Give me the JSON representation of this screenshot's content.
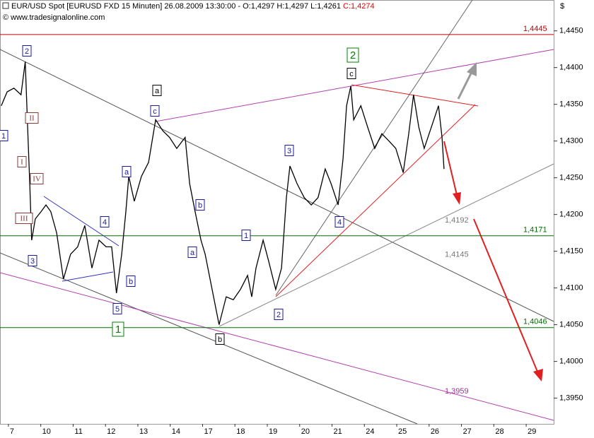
{
  "chart_data": {
    "type": "line",
    "title": "EUR/USD Spot [EURUSD FXD  15 Minuten] 26.08.2009 13:30:00 - O:1,4297 H:1,4297 L:1,4261 ",
    "close_label": "C:1,4274",
    "source": "© www.tradesignalonline.com",
    "y_unit": "$",
    "xlim": [
      -0.26,
      16.85
    ],
    "ylim": [
      1.3915,
      1.4492
    ],
    "xticks": [
      {
        "value": 0,
        "label": "7"
      },
      {
        "value": 1,
        "label": "10"
      },
      {
        "value": 2,
        "label": "11"
      },
      {
        "value": 3,
        "label": "12"
      },
      {
        "value": 4,
        "label": "13"
      },
      {
        "value": 5,
        "label": "14"
      },
      {
        "value": 6,
        "label": "17"
      },
      {
        "value": 7,
        "label": "18"
      },
      {
        "value": 8,
        "label": "19"
      },
      {
        "value": 9,
        "label": "20"
      },
      {
        "value": 10,
        "label": "21"
      },
      {
        "value": 11,
        "label": "24"
      },
      {
        "value": 12,
        "label": "25"
      },
      {
        "value": 13,
        "label": "26"
      },
      {
        "value": 14,
        "label": "27"
      },
      {
        "value": 15,
        "label": "28"
      },
      {
        "value": 16,
        "label": "29"
      }
    ],
    "yticks": [
      {
        "value": 1.445,
        "label": "1,4450"
      },
      {
        "value": 1.44,
        "label": "1,4400"
      },
      {
        "value": 1.435,
        "label": "1,4350"
      },
      {
        "value": 1.43,
        "label": "1,4300"
      },
      {
        "value": 1.425,
        "label": "1,4250"
      },
      {
        "value": 1.42,
        "label": "1,4200"
      },
      {
        "value": 1.415,
        "label": "1,4150"
      },
      {
        "value": 1.41,
        "label": "1,4100"
      },
      {
        "value": 1.405,
        "label": "1,4050"
      },
      {
        "value": 1.4,
        "label": "1,4000"
      },
      {
        "value": 1.395,
        "label": "1,3950"
      }
    ],
    "series": [
      {
        "name": "EUR/USD",
        "color": "#000000",
        "x": [
          -0.22,
          -0.04,
          0.17,
          0.39,
          0.52,
          0.61,
          0.66,
          0.72,
          0.83,
          1.01,
          1.16,
          1.31,
          1.49,
          1.7,
          1.92,
          2.14,
          2.36,
          2.58,
          2.8,
          3.02,
          3.19,
          3.34,
          3.5,
          3.63,
          3.72,
          3.89,
          4.11,
          4.33,
          4.55,
          4.77,
          4.98,
          5.2,
          5.46,
          5.6,
          5.77,
          5.95,
          6.08,
          6.25,
          6.51,
          6.73,
          6.95,
          7.17,
          7.39,
          7.52,
          7.65,
          7.87,
          8.04,
          8.26,
          8.44,
          8.59,
          8.7,
          8.92,
          9.14,
          9.36,
          9.57,
          9.79,
          9.97,
          10.19,
          10.34,
          10.45,
          10.58,
          10.67,
          10.89,
          11.1,
          11.32,
          11.54,
          11.76,
          11.97,
          12.2,
          12.37,
          12.52,
          12.68,
          12.85,
          13.07,
          13.29,
          13.4,
          13.46
        ],
        "values": [
          1.4348,
          1.4367,
          1.4372,
          1.4363,
          1.4408,
          1.43,
          1.4242,
          1.4165,
          1.4194,
          1.4204,
          1.4213,
          1.4204,
          1.4175,
          1.4112,
          1.4146,
          1.4156,
          1.4185,
          1.4127,
          1.4165,
          1.4156,
          1.4156,
          1.4093,
          1.4146,
          1.4204,
          1.4252,
          1.4218,
          1.4252,
          1.4271,
          1.4329,
          1.4314,
          1.4305,
          1.429,
          1.4305,
          1.4242,
          1.4204,
          1.4165,
          1.4146,
          1.4108,
          1.405,
          1.4088,
          1.4084,
          1.4098,
          1.4117,
          1.4088,
          1.4127,
          1.4165,
          1.4137,
          1.4098,
          1.4127,
          1.4223,
          1.4266,
          1.4242,
          1.4223,
          1.4213,
          1.4223,
          1.4262,
          1.4242,
          1.4213,
          1.4276,
          1.4348,
          1.4375,
          1.4329,
          1.4348,
          1.4319,
          1.429,
          1.431,
          1.43,
          1.429,
          1.4257,
          1.431,
          1.4363,
          1.4319,
          1.429,
          1.4319,
          1.4348,
          1.4305,
          1.4262
        ]
      }
    ],
    "levels": [
      {
        "value": 1.4445,
        "label": "1,4445",
        "color": "#c00000"
      },
      {
        "value": 1.4171,
        "label": "1,4171",
        "color": "#007000"
      },
      {
        "value": 1.4046,
        "label": "1,4046",
        "color": "#007000"
      }
    ],
    "trend_labels": [
      {
        "value": 1.4192,
        "label": "1,4192",
        "color": "#777777"
      },
      {
        "value": 1.4145,
        "label": "1,4145",
        "color": "#777777"
      },
      {
        "value": 1.3959,
        "label": "1,3959",
        "color": "#a0309a"
      }
    ],
    "wave_labels": [
      {
        "text": "2",
        "color": "#1a1aa0"
      },
      {
        "text": "II",
        "color": "#8b3a3a"
      },
      {
        "text": "1",
        "color": "#1a1aa0"
      },
      {
        "text": "I",
        "color": "#8b3a3a"
      },
      {
        "text": "IV",
        "color": "#8b3a3a"
      },
      {
        "text": "III",
        "color": "#8b3a3a"
      },
      {
        "text": "3",
        "color": "#1a1aa0"
      },
      {
        "text": "4",
        "color": "#1a1aa0"
      },
      {
        "text": "a",
        "color": "#1a1aa0"
      },
      {
        "text": "b",
        "color": "#1a1aa0"
      },
      {
        "text": "5",
        "color": "#1a1aa0"
      },
      {
        "text": "1",
        "color": "#008000"
      },
      {
        "text": "a",
        "color": "#000000"
      },
      {
        "text": "c",
        "color": "#1a1aa0"
      },
      {
        "text": "b",
        "color": "#1a1aa0"
      },
      {
        "text": "a",
        "color": "#1a1aa0"
      },
      {
        "text": "b",
        "color": "#000000"
      },
      {
        "text": "1",
        "color": "#1a1aa0"
      },
      {
        "text": "2",
        "color": "#1a1aa0"
      },
      {
        "text": "3",
        "color": "#1a1aa0"
      },
      {
        "text": "4",
        "color": "#1a1aa0"
      },
      {
        "text": "2",
        "color": "#008000"
      },
      {
        "text": "c",
        "color": "#000000"
      }
    ]
  }
}
